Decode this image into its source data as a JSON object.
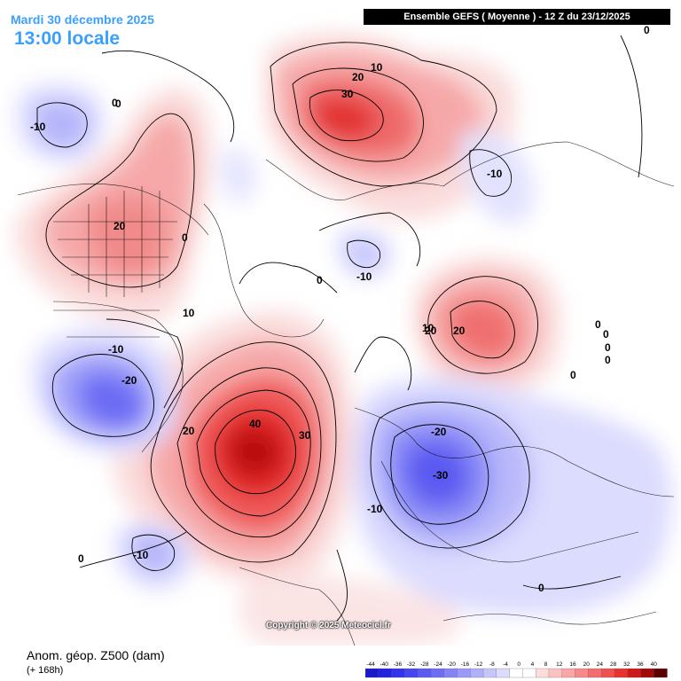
{
  "header": {
    "date": "Mardi 30 décembre 2025",
    "time": "13:00 locale",
    "model_run": "Ensemble GEFS ( Moyenne ) - 12 Z du 23/12/2025"
  },
  "footer": {
    "parameter": "Anom. géop. Z500 (dam)",
    "lead_time": "(+ 168h)",
    "copyright": "Copyright © 2025 Meteociel.fr"
  },
  "legend": {
    "ticks": [
      "-44",
      "-40",
      "-36",
      "-32",
      "-28",
      "-24",
      "-20",
      "-16",
      "-12",
      "-8",
      "-4",
      "0",
      "4",
      "8",
      "12",
      "16",
      "20",
      "24",
      "28",
      "32",
      "36",
      "40"
    ],
    "colors": [
      "#1a1acc",
      "#2222e0",
      "#3333ee",
      "#4646f0",
      "#5a5af2",
      "#6e6ef4",
      "#8484f6",
      "#9a9af8",
      "#b0b0fa",
      "#c6c6fc",
      "#dcdcfe",
      "#ffffff",
      "#ffffff",
      "#fedcdc",
      "#fcc2c2",
      "#f9a6a6",
      "#f68a8a",
      "#f26e6e",
      "#ef5050",
      "#e83232",
      "#d01a1a",
      "#a00a0a",
      "#5a0000"
    ]
  },
  "contour_labels": [
    "-10",
    "0",
    "10",
    "20",
    "30",
    "20",
    "-10",
    "20",
    "0",
    "-10",
    "-20",
    "10",
    "0",
    "-10",
    "20",
    "0",
    "-30",
    "-20",
    "-10",
    "20",
    "30",
    "40",
    "10",
    "-10",
    "0",
    "0",
    "0",
    "0",
    "0",
    "0",
    "0",
    "0"
  ]
}
